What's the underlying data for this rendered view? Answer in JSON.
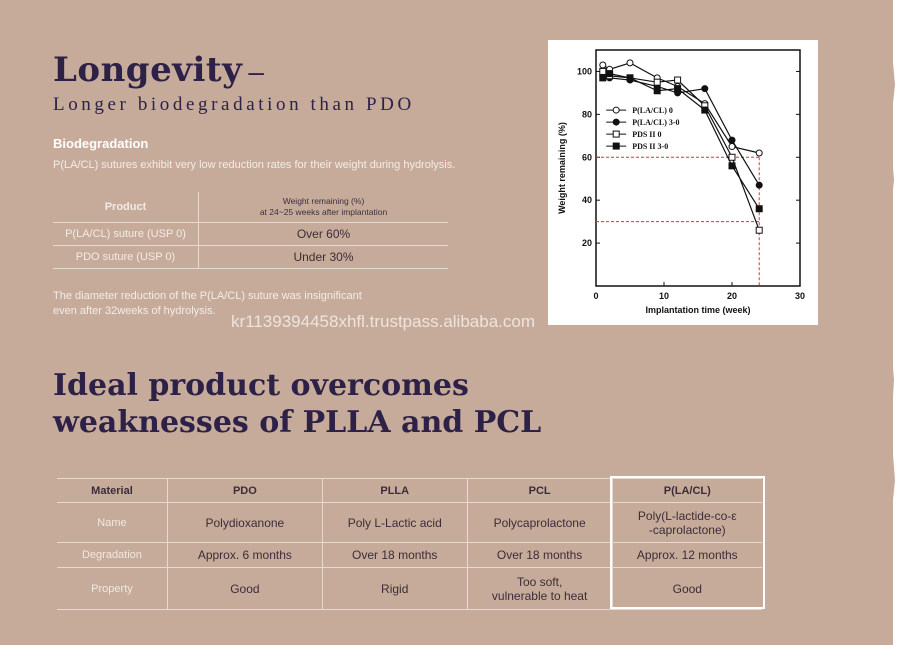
{
  "section1": {
    "title": "Longevity",
    "title_dash": "–",
    "subtitle": "Longer biodegradation than PDO",
    "bio_heading": "Biodegradation",
    "bio_text": "P(LA/CL) sutures exhibit very low reduction rates for their weight during hydrolysis.",
    "table": {
      "col1": "Product",
      "col2_line1": "Weight remaining (%)",
      "col2_line2": "at 24~25 weeks after implantation",
      "rows": [
        {
          "product": "P(LA/CL) suture (USP 0)",
          "value": "Over 60%"
        },
        {
          "product": "PDO suture (USP 0)",
          "value": "Under 30%"
        }
      ]
    },
    "note_line1": "The diameter reduction of the P(LA/CL) suture was insignificant",
    "note_line2": "even after 32weeks of hydrolysis."
  },
  "watermark": "kr1139394458xhfl.trustpass.alibaba.com",
  "chart_data": {
    "type": "line",
    "xlabel": "Implantation time (week)",
    "ylabel": "Weight remaining (%)",
    "xlim": [
      0,
      30
    ],
    "ylim": [
      0,
      110
    ],
    "xticks": [
      "0",
      "10",
      "20",
      "30"
    ],
    "yticks": [
      "20",
      "40",
      "60",
      "80",
      "100"
    ],
    "legend_position": "left",
    "series": [
      {
        "name": "P(LA/CL) 0",
        "marker": "open-circle",
        "x": [
          1,
          2,
          5,
          9,
          12,
          16,
          20,
          24
        ],
        "y": [
          103,
          101,
          104,
          97,
          93,
          85,
          65,
          62
        ]
      },
      {
        "name": "P(LA/CL) 3-0",
        "marker": "filled-circle",
        "x": [
          1,
          2,
          5,
          9,
          12,
          16,
          20,
          24
        ],
        "y": [
          98,
          97,
          96,
          93,
          90,
          92,
          68,
          47
        ]
      },
      {
        "name": "PDS II 0",
        "marker": "open-square",
        "x": [
          1,
          2,
          5,
          9,
          12,
          16,
          20,
          24
        ],
        "y": [
          100,
          98,
          97,
          95,
          96,
          84,
          60,
          26
        ]
      },
      {
        "name": "PDS II 3-0",
        "marker": "filled-square",
        "x": [
          1,
          2,
          5,
          9,
          12,
          16,
          20,
          24
        ],
        "y": [
          97,
          99,
          97,
          91,
          92,
          82,
          56,
          36
        ]
      }
    ],
    "reference_lines": [
      {
        "x": 24,
        "y": 60
      },
      {
        "x": 24,
        "y": 30
      }
    ]
  },
  "section2": {
    "title_line1": "Ideal product overcomes",
    "title_line2": "weaknesses of PLLA and PCL",
    "table": {
      "headers": [
        "Material",
        "PDO",
        "PLLA",
        "PCL",
        "P(LA/CL)"
      ],
      "rows": [
        {
          "label": "Name",
          "pdo": "Polydioxanone",
          "plla": "Poly L-Lactic acid",
          "pcl": "Polycaprolactone",
          "plcl_1": "Poly(L-lactide-co-ε",
          "plcl_2": "-caprolactone)"
        },
        {
          "label": "Degradation",
          "pdo": "Approx. 6 months",
          "plla": "Over 18 months",
          "pcl": "Over 18 months",
          "plcl": "Approx. 12 months"
        },
        {
          "label": "Property",
          "pdo": "Good",
          "plla": "Rigid",
          "pcl_1": "Too soft,",
          "pcl_2": "vulnerable to heat",
          "plcl": "Good"
        }
      ]
    }
  },
  "colors": {
    "background": "#c7ab9a",
    "heading": "#2d2148",
    "highlight_border": "#ffffff",
    "reference_line": "#e0302f"
  }
}
